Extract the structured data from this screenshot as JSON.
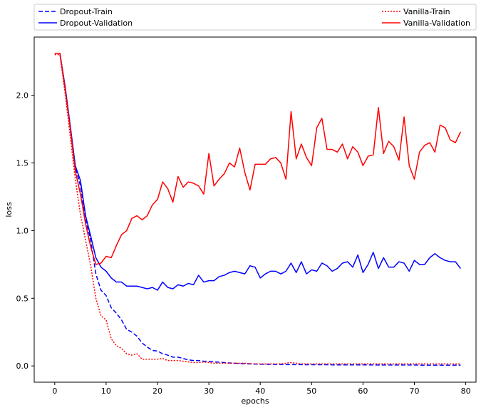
{
  "chart_data": {
    "type": "line",
    "xlabel": "epochs",
    "ylabel": "loss",
    "xlim": [
      -4,
      82
    ],
    "ylim": [
      -0.12,
      2.43
    ],
    "xticks": [
      0,
      10,
      20,
      30,
      40,
      50,
      60,
      70,
      80
    ],
    "yticks": [
      0.0,
      0.5,
      1.0,
      1.5,
      2.0
    ],
    "ytick_labels": [
      "0.0",
      "0.5",
      "1.0",
      "1.5",
      "2.0"
    ],
    "grid": false,
    "legend_placement": "above plot, two columns",
    "series": [
      {
        "name": "Dropout-Train",
        "color": "#0000ff",
        "style": "dashed",
        "values": [
          2.31,
          2.31,
          2.05,
          1.77,
          1.47,
          1.33,
          1.08,
          0.93,
          0.68,
          0.56,
          0.52,
          0.43,
          0.39,
          0.34,
          0.27,
          0.25,
          0.22,
          0.17,
          0.14,
          0.115,
          0.11,
          0.09,
          0.08,
          0.065,
          0.065,
          0.055,
          0.045,
          0.04,
          0.04,
          0.035,
          0.035,
          0.03,
          0.028,
          0.025,
          0.022,
          0.02,
          0.018,
          0.016,
          0.015,
          0.014,
          0.013,
          0.012,
          0.012,
          0.011,
          0.011,
          0.01,
          0.01,
          0.01,
          0.01,
          0.009,
          0.009,
          0.009,
          0.009,
          0.009,
          0.008,
          0.008,
          0.008,
          0.008,
          0.008,
          0.008,
          0.008,
          0.008,
          0.007,
          0.007,
          0.007,
          0.007,
          0.007,
          0.007,
          0.007,
          0.007,
          0.007,
          0.006,
          0.006,
          0.006,
          0.006,
          0.006,
          0.006,
          0.006,
          0.006,
          0.006
        ]
      },
      {
        "name": "Dropout-Validation",
        "color": "#0000ff",
        "style": "solid",
        "values": [
          2.31,
          2.31,
          2.07,
          1.78,
          1.48,
          1.37,
          1.11,
          0.96,
          0.8,
          0.73,
          0.7,
          0.65,
          0.62,
          0.62,
          0.59,
          0.59,
          0.59,
          0.58,
          0.57,
          0.58,
          0.56,
          0.62,
          0.58,
          0.57,
          0.6,
          0.59,
          0.61,
          0.6,
          0.67,
          0.62,
          0.63,
          0.63,
          0.66,
          0.67,
          0.69,
          0.7,
          0.69,
          0.68,
          0.74,
          0.73,
          0.65,
          0.68,
          0.7,
          0.7,
          0.68,
          0.7,
          0.76,
          0.69,
          0.77,
          0.68,
          0.71,
          0.7,
          0.76,
          0.74,
          0.7,
          0.72,
          0.76,
          0.77,
          0.73,
          0.82,
          0.69,
          0.75,
          0.84,
          0.72,
          0.8,
          0.73,
          0.73,
          0.77,
          0.76,
          0.7,
          0.78,
          0.75,
          0.75,
          0.8,
          0.83,
          0.8,
          0.78,
          0.77,
          0.77,
          0.72
        ]
      },
      {
        "name": "Vanilla-Train",
        "color": "#ff0000",
        "style": "dotted",
        "values": [
          2.3,
          2.3,
          2.02,
          1.7,
          1.38,
          1.12,
          0.93,
          0.74,
          0.5,
          0.37,
          0.34,
          0.2,
          0.15,
          0.13,
          0.09,
          0.08,
          0.09,
          0.05,
          0.05,
          0.05,
          0.05,
          0.055,
          0.04,
          0.04,
          0.04,
          0.035,
          0.03,
          0.025,
          0.025,
          0.03,
          0.025,
          0.02,
          0.02,
          0.02,
          0.02,
          0.02,
          0.02,
          0.02,
          0.018,
          0.015,
          0.015,
          0.015,
          0.015,
          0.015,
          0.015,
          0.02,
          0.025,
          0.02,
          0.015,
          0.015,
          0.015,
          0.015,
          0.015,
          0.015,
          0.015,
          0.015,
          0.015,
          0.015,
          0.015,
          0.015,
          0.015,
          0.015,
          0.015,
          0.015,
          0.015,
          0.015,
          0.015,
          0.015,
          0.015,
          0.015,
          0.015,
          0.015,
          0.015,
          0.015,
          0.015,
          0.015,
          0.015,
          0.015,
          0.015,
          0.015
        ]
      },
      {
        "name": "Vanilla-Validation",
        "color": "#ff0000",
        "style": "solid",
        "values": [
          2.31,
          2.31,
          2.05,
          1.76,
          1.44,
          1.27,
          1.05,
          0.88,
          0.75,
          0.76,
          0.81,
          0.8,
          0.89,
          0.97,
          1.0,
          1.09,
          1.11,
          1.08,
          1.11,
          1.19,
          1.23,
          1.36,
          1.31,
          1.21,
          1.4,
          1.32,
          1.36,
          1.35,
          1.33,
          1.27,
          1.57,
          1.33,
          1.38,
          1.42,
          1.5,
          1.47,
          1.61,
          1.43,
          1.3,
          1.49,
          1.49,
          1.49,
          1.53,
          1.54,
          1.5,
          1.38,
          1.88,
          1.53,
          1.64,
          1.54,
          1.48,
          1.76,
          1.83,
          1.6,
          1.6,
          1.58,
          1.64,
          1.53,
          1.62,
          1.58,
          1.48,
          1.55,
          1.56,
          1.91,
          1.57,
          1.66,
          1.62,
          1.52,
          1.84,
          1.48,
          1.38,
          1.58,
          1.63,
          1.65,
          1.58,
          1.78,
          1.76,
          1.67,
          1.65,
          1.73
        ]
      }
    ]
  }
}
